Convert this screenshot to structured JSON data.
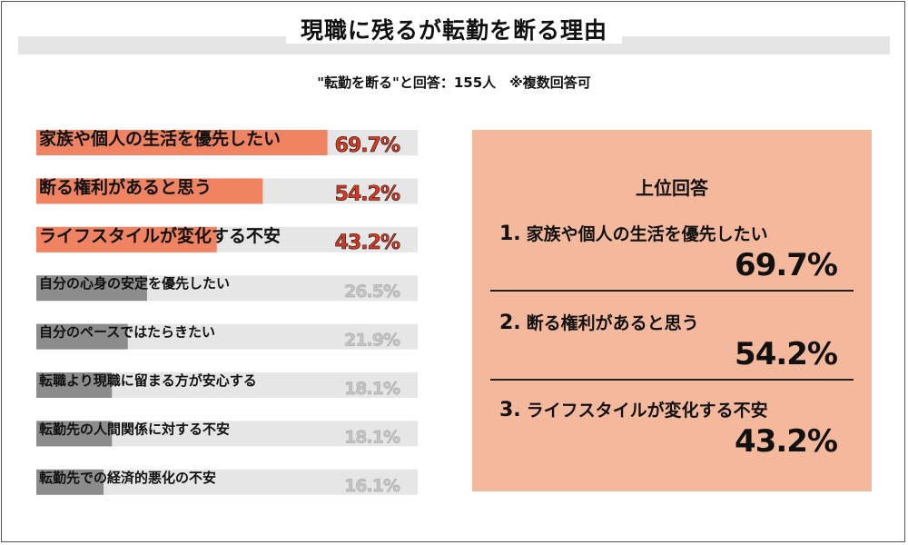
{
  "header": {
    "title": "現職に残るが転勤を断る理由",
    "subtitle": "\"転勤を断る\"と回答：155人　※複数回答可"
  },
  "chart_data": {
    "type": "bar",
    "orientation": "horizontal",
    "categories": [
      "家族や個人の生活を優先したい",
      "断る権利があると思う",
      "ライフスタイルが変化する不安",
      "自分の心身の安定を優先したい",
      "自分のペースではたらきたい",
      "転職より現職に留まる方が安心する",
      "転勤先の人間関係に対する不安",
      "転勤先での経済的悪化の不安"
    ],
    "values": [
      69.7,
      54.2,
      43.2,
      26.5,
      21.9,
      18.1,
      18.1,
      16.1
    ],
    "value_labels": [
      "69.7%",
      "54.2%",
      "43.2%",
      "26.5%",
      "21.9%",
      "18.1%",
      "18.1%",
      "16.1%"
    ],
    "highlight_count": 3,
    "xlim": [
      0,
      100
    ],
    "colors": {
      "highlight": "#f08462",
      "normal": "#8c8c8c",
      "track": "#e6e6e6",
      "label_normal": "#c4c4c4",
      "label_highlight": "#d9381e"
    }
  },
  "top_panel": {
    "title": "上位回答",
    "ranks": [
      {
        "num": "1.",
        "label": "家族や個人の生活を優先したい",
        "value": "69.7%"
      },
      {
        "num": "2.",
        "label": "断る権利があると思う",
        "value": "54.2%"
      },
      {
        "num": "3.",
        "label": "ライフスタイルが変化する不安",
        "value": "43.2%"
      }
    ]
  }
}
